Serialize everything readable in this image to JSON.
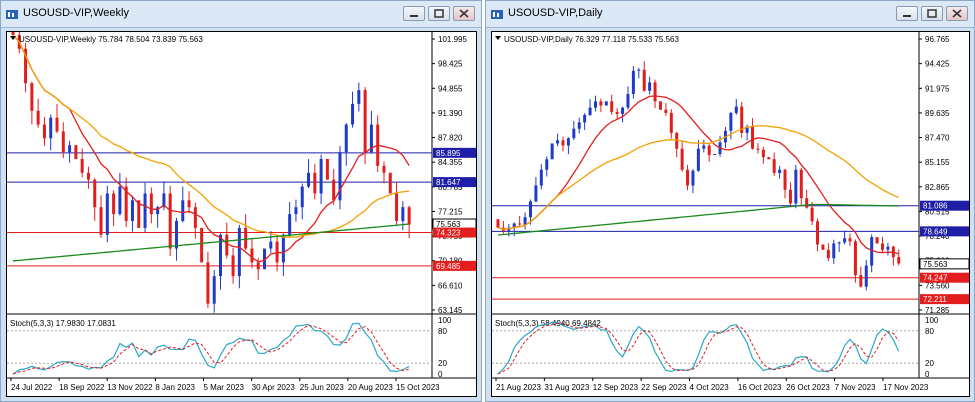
{
  "left": {
    "title": "USOUSD-VIP,Weekly",
    "header": "USOUSD-VIP,Weekly  75.784 78.504 73.839 75.563",
    "price_labels": [
      "101.995",
      "98.425",
      "94.855",
      "91.390",
      "87.820",
      "84.355",
      "80.785",
      "77.215",
      "73.750",
      "70.180",
      "66.610",
      "63.145"
    ],
    "tags": [
      {
        "text": "85.895",
        "color": "#1e1ea8",
        "value": 85.895
      },
      {
        "text": "81.647",
        "color": "#1e1ea8",
        "value": 81.647
      },
      {
        "text": "75.563",
        "color": "#000000",
        "value": 75.563
      },
      {
        "text": "74.323",
        "color": "#e41e1e",
        "value": 74.323
      },
      {
        "text": "69.485",
        "color": "#e41e1e",
        "value": 69.485
      }
    ],
    "stoch_label": "Stoch(5,3,3) 17.9830 17.0831",
    "stoch_levels": [
      "100",
      "80",
      "20",
      "0"
    ],
    "dates": [
      "24 Jul 2022",
      "18 Sep 2022",
      "13 Nov 2022",
      "8 Jan 2023",
      "5 Mar 2023",
      "30 Apr 2023",
      "25 Jun 2023",
      "20 Aug 2023",
      "15 Oct 2023"
    ]
  },
  "right": {
    "title": "USOUSD-VIP,Daily",
    "header": "USOUSD-VIP,Daily  76.329 77.118 75.533 75.563",
    "price_labels": [
      "96.765",
      "94.425",
      "91.975",
      "89.635",
      "87.470",
      "85.155",
      "82.865",
      "80.515",
      "78.240",
      "75.900",
      "73.560",
      "71.285"
    ],
    "tags": [
      {
        "text": "81.086",
        "color": "#1e1ea8",
        "value": 81.086
      },
      {
        "text": "78.649",
        "color": "#1e1ea8",
        "value": 78.649
      },
      {
        "text": "75.563",
        "color": "#000000",
        "value": 75.563
      },
      {
        "text": "74.247",
        "color": "#e41e1e",
        "value": 74.247
      },
      {
        "text": "72.211",
        "color": "#e41e1e",
        "value": 72.211
      }
    ],
    "stoch_label": "Stoch(5,3,3) 58.4940 69.4842",
    "stoch_levels": [
      "100",
      "80",
      "20",
      "0"
    ],
    "dates": [
      "21 Aug 2023",
      "31 Aug 2023",
      "12 Sep 2023",
      "22 Sep 2023",
      "4 Oct 2023",
      "16 Oct 2023",
      "26 Oct 2023",
      "7 Nov 2023",
      "17 Nov 2023"
    ]
  },
  "colors": {
    "bull": "#1e3cc8",
    "bear": "#e01e1e",
    "ma_fast": "#e41e1e",
    "ma_mid": "#f5a000",
    "ma_slow": "#1a8a1a",
    "stoch_main": "#2aa8c8",
    "stoch_signal": "#e41e1e",
    "level_blue": "#1e1ea8",
    "level_red": "#e41e1e"
  }
}
